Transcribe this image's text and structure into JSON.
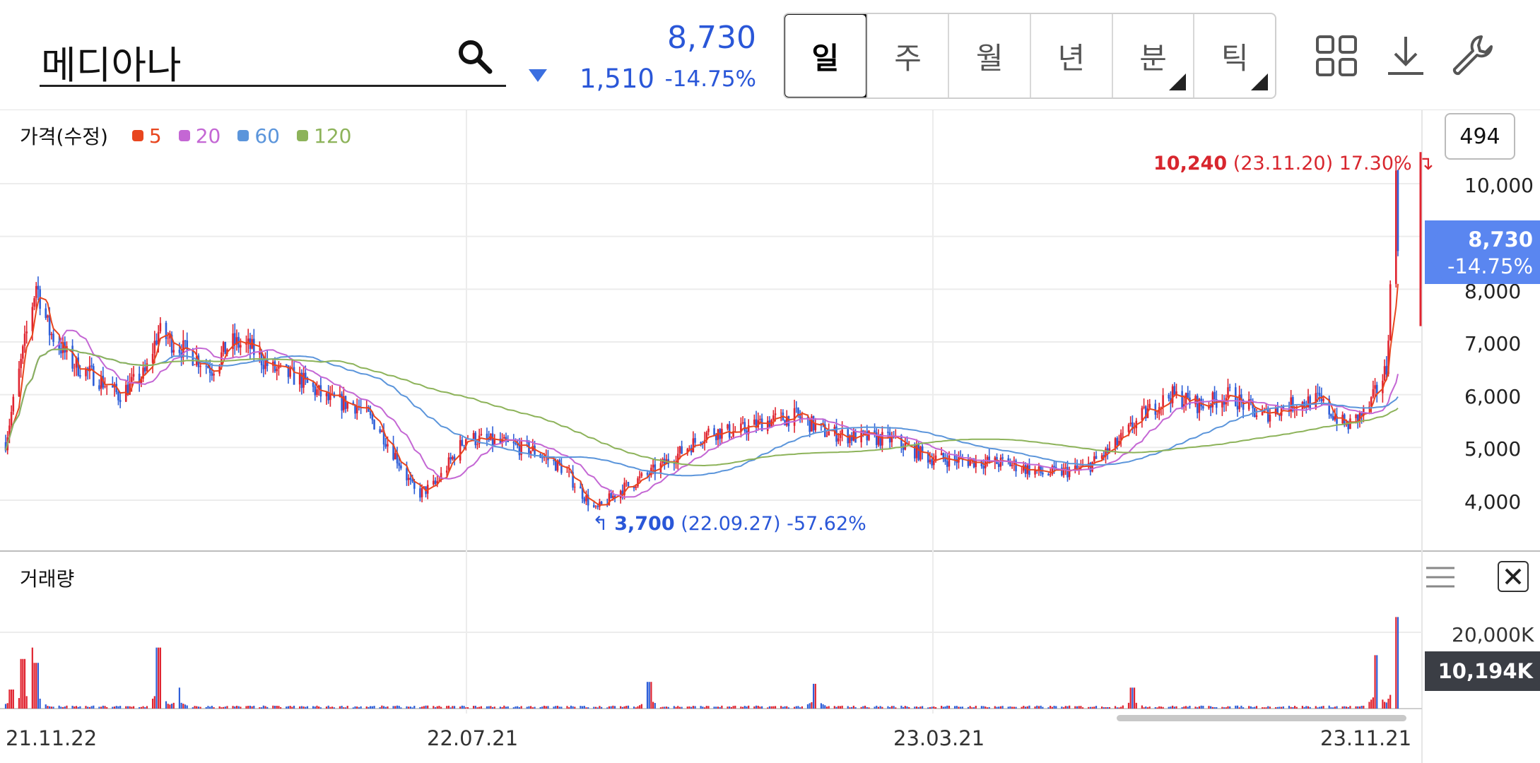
{
  "header": {
    "stock_name": "메디아나",
    "current_price": "8,730",
    "change_abs": "1,510",
    "change_pct": "-14.75%",
    "direction_icon": "down-triangle-icon"
  },
  "period_tabs": [
    {
      "label": "일",
      "active": true,
      "has_menu": false
    },
    {
      "label": "주",
      "active": false,
      "has_menu": false
    },
    {
      "label": "월",
      "active": false,
      "has_menu": false
    },
    {
      "label": "년",
      "active": false,
      "has_menu": false
    },
    {
      "label": "분",
      "active": false,
      "has_menu": true
    },
    {
      "label": "틱",
      "active": false,
      "has_menu": true
    }
  ],
  "toolbar": {
    "icons": [
      "grid-icon",
      "download-icon",
      "wrench-icon"
    ]
  },
  "price_panel": {
    "title": "가격(수정)",
    "legend": [
      {
        "label": "5",
        "color": "#e8461f"
      },
      {
        "label": "20",
        "color": "#c467d4"
      },
      {
        "label": "60",
        "color": "#5b95db"
      },
      {
        "label": "120",
        "color": "#8db35a"
      }
    ],
    "count_badge": "494",
    "y_labels": [
      "10,000",
      "8,000",
      "7,000",
      "6,000",
      "5,000",
      "4,000"
    ],
    "price_tag": {
      "price": "8,730",
      "pct": "-14.75%"
    },
    "high_annotation": {
      "price": "10,240",
      "date": "(23.11.20)",
      "pct": "17.30%"
    },
    "low_annotation": {
      "price": "3,700",
      "date": "(22.09.27)",
      "pct": "-57.62%"
    }
  },
  "volume_panel": {
    "title": "거래량",
    "y_label": "20,000K",
    "volume_tag": "10,194K"
  },
  "x_labels": [
    "21.11.22",
    "22.07.21",
    "23.03.21",
    "23.11.21"
  ],
  "colors": {
    "up": "#e02430",
    "down": "#2f5fd8",
    "accent": "#2a57d8"
  },
  "chart_data": {
    "type": "candlestick",
    "x_range": [
      "21.11.22",
      "23.11.21"
    ],
    "ylim": [
      3500,
      10600
    ],
    "close_profile": [
      [
        "21.11.22",
        5100
      ],
      [
        "21.12.01",
        6800
      ],
      [
        "21.12.08",
        8100
      ],
      [
        "21.12.15",
        7200
      ],
      [
        "21.12.27",
        6600
      ],
      [
        "22.01.10",
        6300
      ],
      [
        "22.01.20",
        6000
      ],
      [
        "22.02.03",
        6400
      ],
      [
        "22.02.10",
        7200
      ],
      [
        "22.02.17",
        7000
      ],
      [
        "22.03.02",
        6700
      ],
      [
        "22.03.10",
        6500
      ],
      [
        "22.03.20",
        7000
      ],
      [
        "22.03.30",
        6900
      ],
      [
        "22.04.10",
        6500
      ],
      [
        "22.04.25",
        6300
      ],
      [
        "22.05.10",
        5900
      ],
      [
        "22.05.25",
        5800
      ],
      [
        "22.06.05",
        5400
      ],
      [
        "22.06.15",
        4800
      ],
      [
        "22.06.25",
        4100
      ],
      [
        "22.07.05",
        4300
      ],
      [
        "22.07.21",
        5200
      ],
      [
        "22.08.05",
        5100
      ],
      [
        "22.08.25",
        4950
      ],
      [
        "22.09.10",
        4600
      ],
      [
        "22.09.27",
        3800
      ],
      [
        "22.10.10",
        4200
      ],
      [
        "22.10.25",
        4500
      ],
      [
        "22.11.10",
        4900
      ],
      [
        "22.11.25",
        5300
      ],
      [
        "22.12.10",
        5300
      ],
      [
        "22.12.25",
        5500
      ],
      [
        "23.01.10",
        5600
      ],
      [
        "23.01.25",
        5300
      ],
      [
        "23.02.10",
        5200
      ],
      [
        "23.03.01",
        5150
      ],
      [
        "23.03.21",
        4800
      ],
      [
        "23.04.10",
        4750
      ],
      [
        "23.05.01",
        4700
      ],
      [
        "23.05.20",
        4500
      ],
      [
        "23.06.10",
        4600
      ],
      [
        "23.06.25",
        5000
      ],
      [
        "23.07.10",
        5600
      ],
      [
        "23.07.25",
        6000
      ],
      [
        "23.08.10",
        5800
      ],
      [
        "23.08.25",
        6000
      ],
      [
        "23.09.10",
        5600
      ],
      [
        "23.09.25",
        5800
      ],
      [
        "23.10.10",
        5900
      ],
      [
        "23.10.25",
        5400
      ],
      [
        "23.11.05",
        5700
      ],
      [
        "23.11.15",
        6500
      ],
      [
        "23.11.20",
        10240
      ],
      [
        "23.11.21",
        8730
      ]
    ],
    "moving_averages": [
      "5",
      "20",
      "60",
      "120"
    ],
    "volume_spikes_k": [
      [
        "21.11.25",
        5000
      ],
      [
        "21.12.01",
        13000
      ],
      [
        "21.12.05",
        16000
      ],
      [
        "21.12.08",
        12000
      ],
      [
        "22.02.10",
        16000
      ],
      [
        "22.02.20",
        5500
      ],
      [
        "22.10.25",
        7000
      ],
      [
        "23.01.20",
        6500
      ],
      [
        "23.07.05",
        5500
      ],
      [
        "23.11.10",
        14000
      ],
      [
        "23.11.20",
        24000
      ],
      [
        "23.11.21",
        10194
      ]
    ]
  }
}
